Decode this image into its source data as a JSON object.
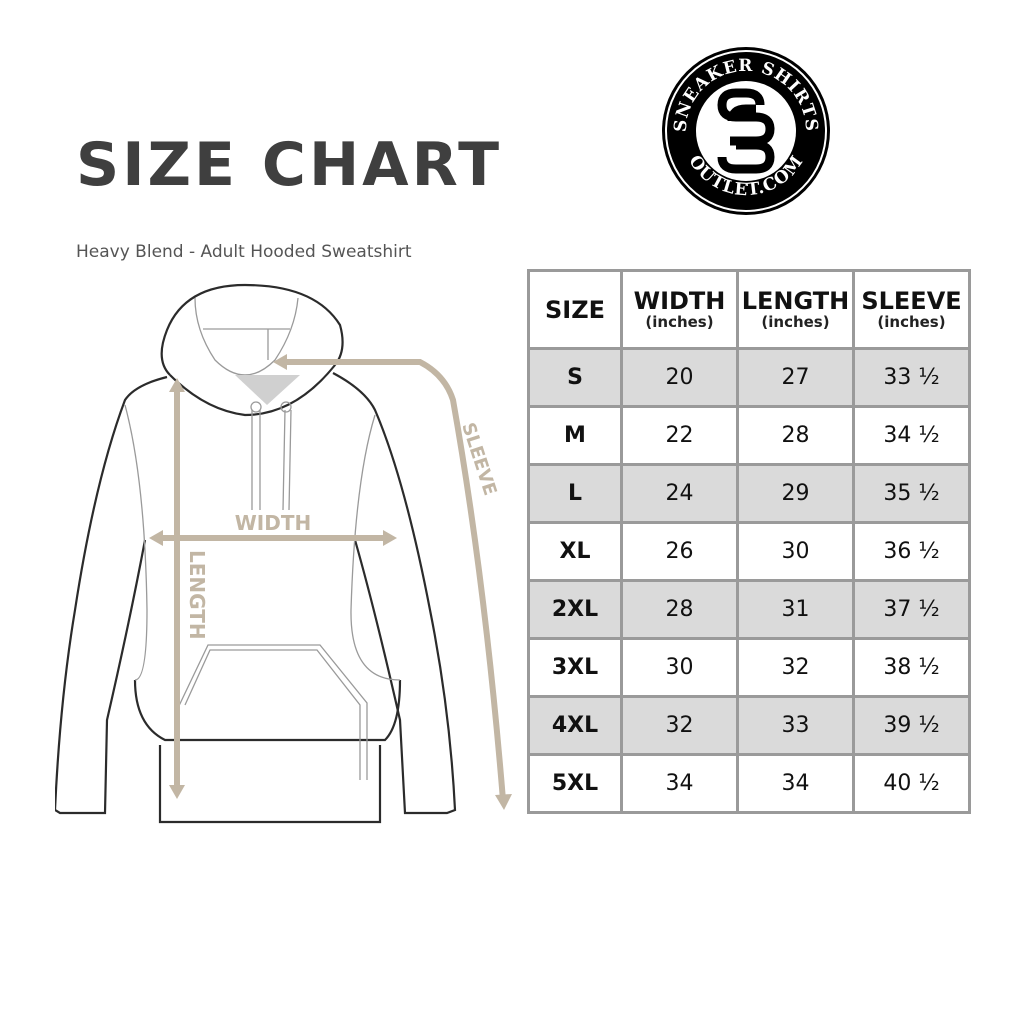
{
  "title": "SIZE CHART",
  "subtitle": "Heavy Blend - Adult Hooded Sweatshirt",
  "logo": {
    "text_top": "SNEAKER SHIRTS",
    "text_bottom": "OUTLET.COM",
    "monogram": "SS"
  },
  "diagram": {
    "width_label": "WIDTH",
    "length_label": "LENGTH",
    "sleeve_label": "SLEEVE",
    "measure_color": "#c2b6a4"
  },
  "table": {
    "headers": [
      {
        "label": "SIZE",
        "unit": ""
      },
      {
        "label": "WIDTH",
        "unit": "(inches)"
      },
      {
        "label": "LENGTH",
        "unit": "(inches)"
      },
      {
        "label": "SLEEVE",
        "unit": "(inches)"
      }
    ],
    "rows": [
      [
        "S",
        "20",
        "27",
        "33 ½"
      ],
      [
        "M",
        "22",
        "28",
        "34 ½"
      ],
      [
        "L",
        "24",
        "29",
        "35 ½"
      ],
      [
        "XL",
        "26",
        "30",
        "36 ½"
      ],
      [
        "2XL",
        "28",
        "31",
        "37 ½"
      ],
      [
        "3XL",
        "30",
        "32",
        "38 ½"
      ],
      [
        "4XL",
        "32",
        "33",
        "39 ½"
      ],
      [
        "5XL",
        "34",
        "34",
        "40 ½"
      ]
    ]
  }
}
